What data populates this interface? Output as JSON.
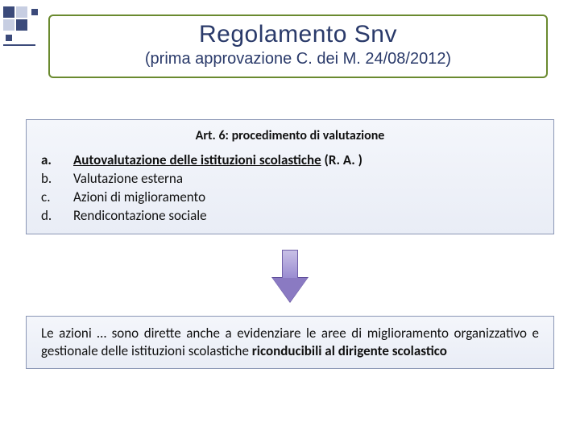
{
  "title": {
    "main": "Regolamento Snv",
    "sub": "(prima approvazione C. dei M. 24/08/2012)"
  },
  "box1": {
    "heading": "Art. 6: procedimento di valutazione",
    "items": [
      {
        "marker": "a.",
        "pre": "Autovalutazione delle istituzioni scolastiche",
        "suf": " (R. A. )",
        "bold": true
      },
      {
        "marker": "b.",
        "pre": "Valutazione esterna",
        "suf": "",
        "bold": false
      },
      {
        "marker": "c.",
        "pre": "Azioni di  miglioramento",
        "suf": "",
        "bold": false
      },
      {
        "marker": "d.",
        "pre": "Rendicontazione sociale",
        "suf": "",
        "bold": false
      }
    ]
  },
  "box2": {
    "t1": "Le azioni … sono dirette anche a evidenziare le aree di miglioramento organizzativo e gestionale delle istituzioni scolastiche ",
    "t2": "riconducibili al dirigente scolastico"
  },
  "colors": {
    "title_border": "#6a8a2f",
    "title_text": "#2a3a6a",
    "box_border": "#8a96b5",
    "box_bg_top": "#f4f6fb",
    "box_bg_bot": "#e9edf6",
    "arrow_fill": "#8a7ac2",
    "arrow_border": "#5d4c99",
    "deco_dark": "#3b4a7a",
    "deco_light": "#c7cee2"
  }
}
